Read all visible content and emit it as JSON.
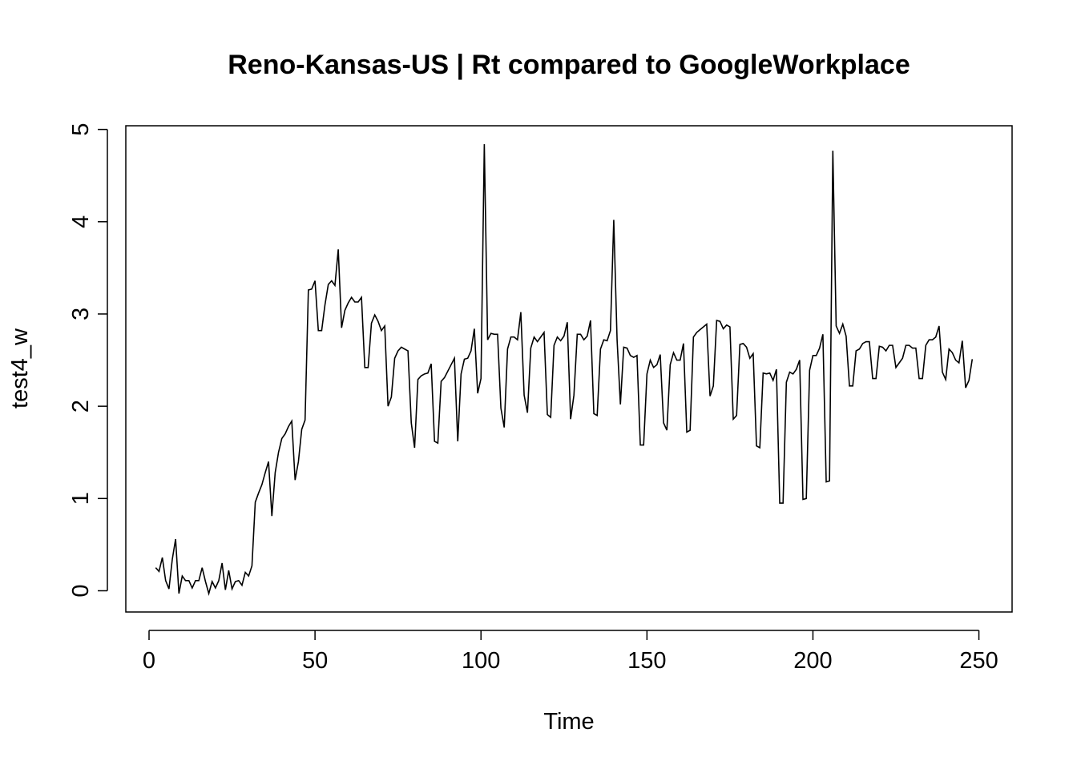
{
  "chart_data": {
    "type": "line",
    "title": "Reno-Kansas-US | Rt compared to GoogleWorkplace",
    "xlabel": "Time",
    "ylabel": "test4_w",
    "xlim": [
      -7,
      260
    ],
    "ylim": [
      -0.23,
      5.04
    ],
    "x_ticks": [
      0,
      50,
      100,
      150,
      200,
      250
    ],
    "x_tick_labels": [
      "0",
      "50",
      "100",
      "150",
      "200",
      "250"
    ],
    "y_ticks": [
      0,
      1,
      2,
      3,
      4,
      5
    ],
    "y_tick_labels": [
      "0",
      "1",
      "2",
      "3",
      "4",
      "5"
    ],
    "grid": false,
    "line_color": "#000000",
    "series": [
      {
        "x_start": 2,
        "values": [
          0.25,
          0.21,
          0.36,
          0.11,
          0.02,
          0.34,
          0.56,
          -0.03,
          0.16,
          0.11,
          0.11,
          0.03,
          0.11,
          0.11,
          0.25,
          0.1,
          -0.03,
          0.1,
          0.03,
          0.11,
          0.3,
          0.01,
          0.22,
          0.02,
          0.1,
          0.11,
          0.06,
          0.2,
          0.16,
          0.27,
          0.96,
          1.06,
          1.15,
          1.28,
          1.4,
          0.81,
          1.28,
          1.5,
          1.65,
          1.7,
          1.78,
          1.84,
          1.2,
          1.4,
          1.75,
          1.85,
          3.26,
          3.27,
          3.36,
          2.82,
          2.82,
          3.1,
          3.32,
          3.36,
          3.31,
          3.7,
          2.85,
          3.04,
          3.12,
          3.18,
          3.13,
          3.13,
          3.18,
          2.42,
          2.42,
          2.9,
          2.99,
          2.92,
          2.82,
          2.87,
          2.0,
          2.1,
          2.52,
          2.6,
          2.64,
          2.62,
          2.6,
          1.82,
          1.55,
          2.29,
          2.33,
          2.35,
          2.36,
          2.46,
          1.62,
          1.6,
          2.27,
          2.31,
          2.38,
          2.45,
          2.52,
          1.62,
          2.35,
          2.51,
          2.52,
          2.6,
          2.84,
          2.14,
          2.3,
          4.84,
          2.72,
          2.79,
          2.78,
          2.78,
          1.98,
          1.77,
          2.62,
          2.75,
          2.75,
          2.72,
          3.02,
          2.12,
          1.93,
          2.63,
          2.75,
          2.7,
          2.75,
          2.8,
          1.91,
          1.88,
          2.66,
          2.75,
          2.71,
          2.76,
          2.91,
          1.86,
          2.12,
          2.78,
          2.78,
          2.72,
          2.76,
          2.93,
          1.92,
          1.9,
          2.62,
          2.72,
          2.71,
          2.82,
          4.02,
          2.72,
          2.02,
          2.64,
          2.63,
          2.55,
          2.53,
          2.55,
          1.58,
          1.58,
          2.35,
          2.5,
          2.42,
          2.45,
          2.56,
          1.82,
          1.74,
          2.45,
          2.58,
          2.5,
          2.5,
          2.68,
          1.72,
          1.74,
          2.75,
          2.8,
          2.83,
          2.86,
          2.89,
          2.11,
          2.22,
          2.93,
          2.92,
          2.84,
          2.88,
          2.86,
          1.86,
          1.9,
          2.67,
          2.68,
          2.64,
          2.52,
          2.57,
          1.57,
          1.55,
          2.36,
          2.35,
          2.36,
          2.28,
          2.4,
          0.95,
          0.95,
          2.26,
          2.37,
          2.35,
          2.4,
          2.5,
          0.99,
          1.0,
          2.39,
          2.55,
          2.55,
          2.63,
          2.78,
          1.18,
          1.19,
          4.77,
          2.87,
          2.79,
          2.89,
          2.76,
          2.22,
          2.22,
          2.6,
          2.62,
          2.68,
          2.7,
          2.7,
          2.3,
          2.3,
          2.65,
          2.64,
          2.6,
          2.66,
          2.66,
          2.42,
          2.47,
          2.52,
          2.66,
          2.66,
          2.63,
          2.63,
          2.3,
          2.3,
          2.66,
          2.72,
          2.72,
          2.75,
          2.87,
          2.37,
          2.29,
          2.62,
          2.58,
          2.5,
          2.47,
          2.71,
          2.2,
          2.28,
          2.51
        ]
      }
    ]
  }
}
